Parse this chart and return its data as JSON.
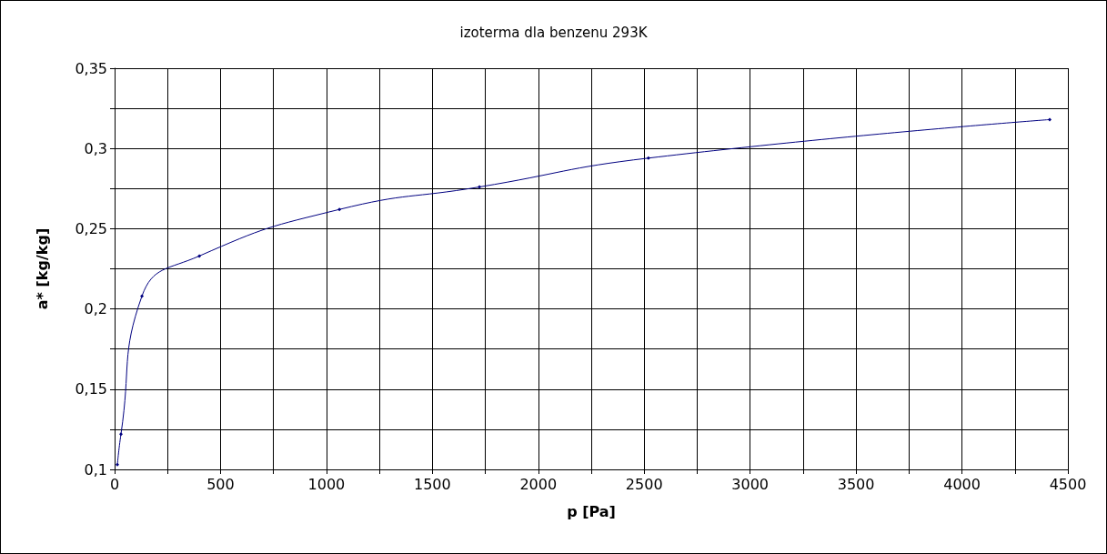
{
  "chart_data": {
    "type": "line",
    "title": "izoterma dla benzenu 293K",
    "xlabel": "p [Pa]",
    "ylabel": "a* [kg/kg]",
    "x": [
      13,
      30,
      129,
      400,
      1061,
      1722,
      2520,
      4414
    ],
    "series": [
      {
        "color": "#000080",
        "values": [
          0.103,
          0.122,
          0.208,
          0.233,
          0.262,
          0.276,
          0.294,
          0.318
        ]
      }
    ],
    "xlim": [
      0,
      4500
    ],
    "xticks": [
      0,
      {
        "value": 250,
        "label": null
      },
      500,
      {
        "value": 750,
        "label": null
      },
      1000,
      {
        "value": 1250,
        "label": null
      },
      1500,
      {
        "value": 1750,
        "label": null
      },
      2000,
      {
        "value": 2250,
        "label": null
      },
      2500,
      {
        "value": 2750,
        "label": null
      },
      3000,
      {
        "value": 3250,
        "label": null
      },
      3500,
      {
        "value": 3750,
        "label": null
      },
      4000,
      {
        "value": 4250,
        "label": null
      },
      4500
    ],
    "ylim": [
      0.1,
      0.35
    ],
    "yticks": [
      {
        "value": 0.1,
        "label": "0,1"
      },
      {
        "value": 0.125,
        "label": null
      },
      {
        "value": 0.15,
        "label": "0,15"
      },
      {
        "value": 0.175,
        "label": null
      },
      {
        "value": 0.2,
        "label": "0,2"
      },
      {
        "value": 0.225,
        "label": null
      },
      {
        "value": 0.25,
        "label": "0,25"
      },
      {
        "value": 0.275,
        "label": null
      },
      {
        "value": 0.3,
        "label": "0,3"
      },
      {
        "value": 0.325,
        "label": null
      },
      {
        "value": 0.35,
        "label": "0,35"
      }
    ],
    "grid": true,
    "marker": "diamond",
    "line_style": "solid"
  }
}
